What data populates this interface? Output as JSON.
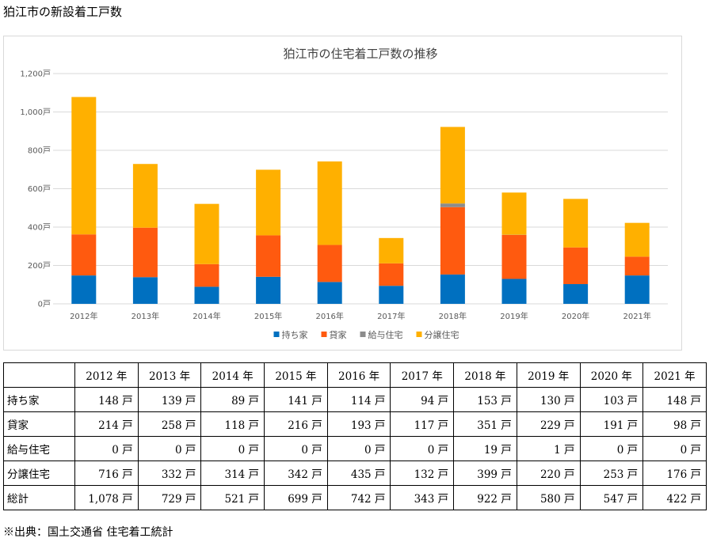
{
  "page_title": "狛江市の新設着工戸数",
  "source_note": "※出典：国土交通省 住宅着工統計",
  "colors": {
    "持ち家": "#0070c0",
    "貸家": "#ff5a0f",
    "給与住宅": "#8c8c8c",
    "分譲住宅": "#ffb000",
    "grid": "#d9d9d9",
    "axis_text": "#595959"
  },
  "chart_data": {
    "type": "bar",
    "stacked": true,
    "title": "狛江市の住宅着工戸数の推移",
    "categories": [
      "2012年",
      "2013年",
      "2014年",
      "2015年",
      "2016年",
      "2017年",
      "2018年",
      "2019年",
      "2020年",
      "2021年"
    ],
    "series": [
      {
        "name": "持ち家",
        "values": [
          148,
          139,
          89,
          141,
          114,
          94,
          153,
          130,
          103,
          148
        ]
      },
      {
        "name": "貸家",
        "values": [
          214,
          258,
          118,
          216,
          193,
          117,
          351,
          229,
          191,
          98
        ]
      },
      {
        "name": "給与住宅",
        "values": [
          0,
          0,
          0,
          0,
          0,
          0,
          19,
          1,
          0,
          0
        ]
      },
      {
        "name": "分譲住宅",
        "values": [
          716,
          332,
          314,
          342,
          435,
          132,
          399,
          220,
          253,
          176
        ]
      }
    ],
    "ylim": [
      0,
      1200
    ],
    "yticks": [
      0,
      200,
      400,
      600,
      800,
      1000,
      1200
    ],
    "ytick_labels": [
      "0戸",
      "200戸",
      "400戸",
      "600戸",
      "800戸",
      "1,000戸",
      "1,200戸"
    ],
    "grid": true,
    "legend_position": "bottom"
  },
  "table": {
    "headers": [
      "",
      "2012 年",
      "2013 年",
      "2014 年",
      "2015 年",
      "2016 年",
      "2017 年",
      "2018 年",
      "2019 年",
      "2020 年",
      "2021 年"
    ],
    "rows": [
      {
        "label": "持ち家",
        "cells": [
          "148 戸",
          "139 戸",
          "89 戸",
          "141 戸",
          "114 戸",
          "94 戸",
          "153 戸",
          "130 戸",
          "103 戸",
          "148 戸"
        ]
      },
      {
        "label": "貸家",
        "cells": [
          "214 戸",
          "258 戸",
          "118 戸",
          "216 戸",
          "193 戸",
          "117 戸",
          "351 戸",
          "229 戸",
          "191 戸",
          "98 戸"
        ]
      },
      {
        "label": "給与住宅",
        "cells": [
          "0 戸",
          "0 戸",
          "0 戸",
          "0 戸",
          "0 戸",
          "0 戸",
          "19 戸",
          "1 戸",
          "0 戸",
          "0 戸"
        ]
      },
      {
        "label": "分譲住宅",
        "cells": [
          "716 戸",
          "332 戸",
          "314 戸",
          "342 戸",
          "435 戸",
          "132 戸",
          "399 戸",
          "220 戸",
          "253 戸",
          "176 戸"
        ]
      },
      {
        "label": "総計",
        "cells": [
          "1,078 戸",
          "729 戸",
          "521 戸",
          "699 戸",
          "742 戸",
          "343 戸",
          "922 戸",
          "580 戸",
          "547 戸",
          "422 戸"
        ]
      }
    ]
  }
}
